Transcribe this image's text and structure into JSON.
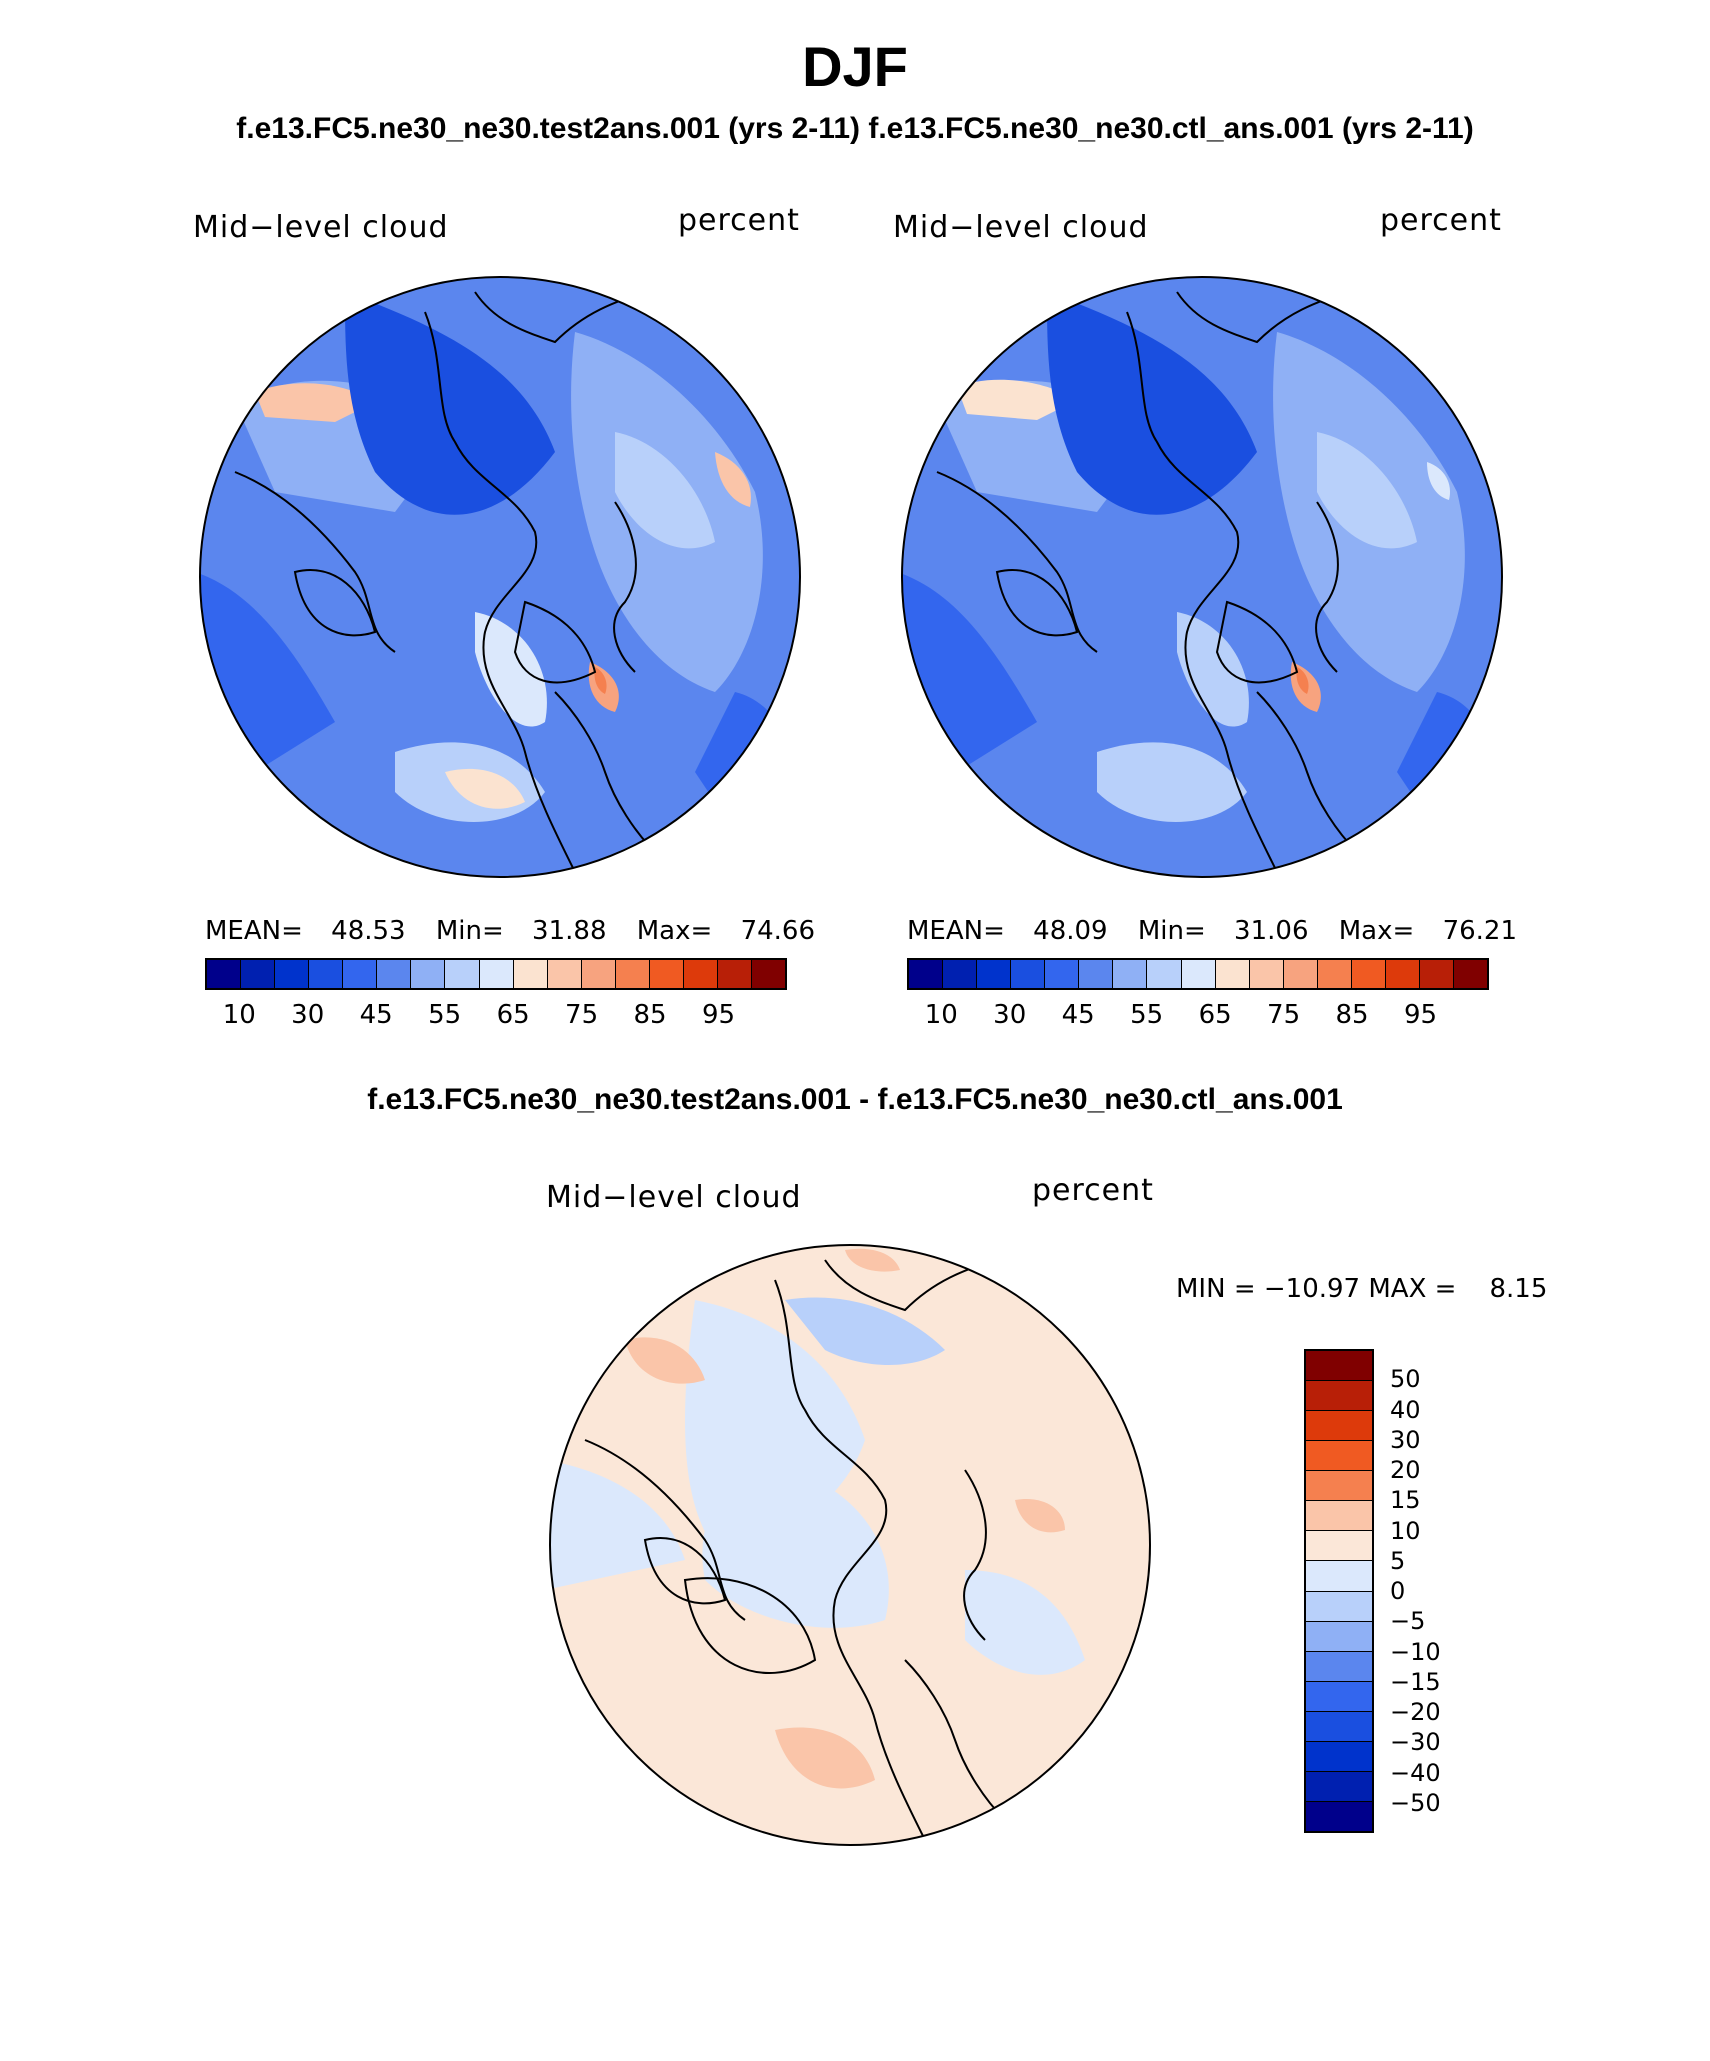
{
  "title": "DJF",
  "subtitle_top": "f.e13.FC5.ne30_ne30.test2ans.001 (yrs 2-11)   f.e13.FC5.ne30_ne30.ctl_ans.001 (yrs 2-11)",
  "subtitle_diff": "f.e13.FC5.ne30_ne30.test2ans.001 - f.e13.FC5.ne30_ne30.ctl_ans.001",
  "panels": [
    {
      "variable": "Mid−level cloud",
      "units": "percent",
      "stats": {
        "mean_label": "MEAN=",
        "mean": "48.53",
        "min_label": "Min=",
        "min": "31.88",
        "max_label": "Max=",
        "max": "74.66"
      }
    },
    {
      "variable": "Mid−level cloud",
      "units": "percent",
      "stats": {
        "mean_label": "MEAN=",
        "mean": "48.09",
        "min_label": "Min=",
        "min": "31.06",
        "max_label": "Max=",
        "max": "76.21"
      }
    }
  ],
  "diff_panel": {
    "variable": "Mid−level cloud",
    "units": "percent",
    "minmax": "MIN = −10.97 MAX =    8.15"
  },
  "colorbar_abs": {
    "colors": [
      "#00008b",
      "#0020b0",
      "#0033cc",
      "#1a4fe0",
      "#3366ee",
      "#5b86ee",
      "#8fb0f5",
      "#b8d0fa",
      "#dbe8fc",
      "#fbe3d0",
      "#fac5a9",
      "#f7a37f",
      "#f5804f",
      "#f05a22",
      "#dd3a0b",
      "#b81f07",
      "#800000"
    ],
    "ticks": [
      "10",
      "30",
      "45",
      "55",
      "65",
      "75",
      "85",
      "95"
    ]
  },
  "colorbar_diff": {
    "colors": [
      "#800000",
      "#b81f07",
      "#dd3a0b",
      "#f05a22",
      "#f5804f",
      "#fac5a9",
      "#fbe7d8",
      "#dbe8fc",
      "#b8d0fa",
      "#8fb0f5",
      "#5b86ee",
      "#3366ee",
      "#1a4fe0",
      "#0033cc",
      "#0020b0",
      "#00008b"
    ],
    "ticks": [
      "50",
      "40",
      "30",
      "20",
      "15",
      "10",
      "5",
      "0",
      "−5",
      "−10",
      "−15",
      "−20",
      "−30",
      "−40",
      "−50"
    ]
  }
}
